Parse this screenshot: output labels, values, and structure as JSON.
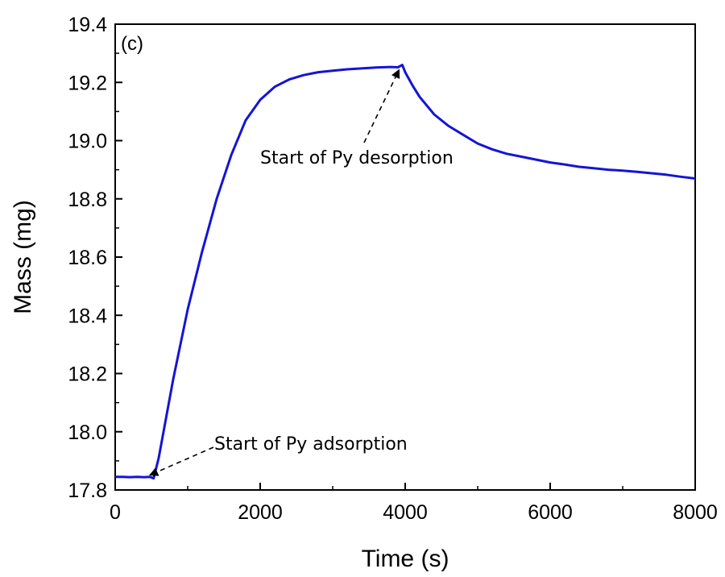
{
  "chart_data": {
    "type": "line",
    "panel_label": "(c)",
    "xlabel": "Time (s)",
    "ylabel": "Mass (mg)",
    "xlim": [
      0,
      8000
    ],
    "ylim": [
      17.8,
      19.4
    ],
    "x_ticks": [
      "0",
      "2000",
      "4000",
      "6000",
      "8000"
    ],
    "y_ticks": [
      "17.8",
      "18.0",
      "18.2",
      "18.4",
      "18.6",
      "18.8",
      "19.0",
      "19.2",
      "19.4"
    ],
    "grid": false,
    "line_color": "#1414d6",
    "series": [
      {
        "x": [
          0,
          100,
          200,
          300,
          400,
          480,
          530,
          600,
          800,
          1000,
          1200,
          1400,
          1600,
          1800,
          2000,
          2200,
          2400,
          2600,
          2800,
          3000,
          3200,
          3400,
          3600,
          3800,
          3900,
          3960,
          4000,
          4100,
          4200,
          4400,
          4600,
          4800,
          5000,
          5200,
          5400,
          5600,
          5800,
          6000,
          6200,
          6400,
          6600,
          6800,
          7000,
          7200,
          7400,
          7600,
          7800,
          8000
        ],
        "y": [
          17.845,
          17.845,
          17.844,
          17.845,
          17.844,
          17.845,
          17.84,
          17.91,
          18.18,
          18.42,
          18.62,
          18.8,
          18.95,
          19.07,
          19.14,
          19.185,
          19.21,
          19.225,
          19.235,
          19.24,
          19.245,
          19.248,
          19.251,
          19.253,
          19.252,
          19.26,
          19.235,
          19.19,
          19.15,
          19.09,
          19.05,
          19.02,
          18.99,
          18.97,
          18.955,
          18.945,
          18.935,
          18.925,
          18.918,
          18.91,
          18.905,
          18.9,
          18.897,
          18.893,
          18.888,
          18.883,
          18.876,
          18.87
        ]
      }
    ],
    "annotations": [
      {
        "text": "Start of Py adsorption",
        "x": 500,
        "y": 17.84
      },
      {
        "text": "Start of Py desorption",
        "x": 3960,
        "y": 19.26
      }
    ]
  }
}
